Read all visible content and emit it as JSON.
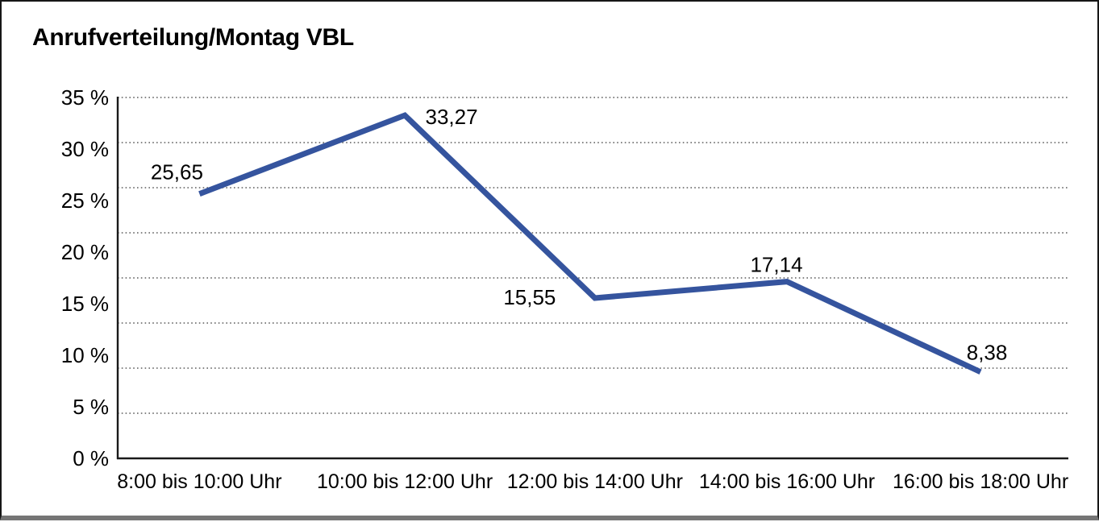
{
  "chart_data": {
    "type": "line",
    "title": "Anrufverteilung/Montag VBL",
    "categories": [
      "8:00 bis 10:00 Uhr",
      "10:00 bis 12:00 Uhr",
      "12:00 bis 14:00 Uhr",
      "14:00 bis 16:00 Uhr",
      "16:00 bis 18:00 Uhr"
    ],
    "values": [
      25.65,
      33.27,
      15.55,
      17.14,
      8.38
    ],
    "value_labels": [
      "25,65",
      "33,27",
      "15,55",
      "17,14",
      "8,38"
    ],
    "y_ticks": [
      "35 %",
      "30 %",
      "25 %",
      "20 %",
      "15 %",
      "10 %",
      "5 %",
      "0 %"
    ],
    "y_tick_values": [
      35,
      30,
      25,
      20,
      15,
      10,
      5,
      0
    ],
    "ylim": [
      0,
      35
    ],
    "xlabel": "",
    "ylabel": "",
    "grid": {
      "horizontal": true,
      "style": "dotted",
      "divisions": 8
    },
    "legend": "none",
    "line_color": "#35549E",
    "axis_color": "#1a1a1a",
    "gridline_color": "#5c5c5c"
  }
}
